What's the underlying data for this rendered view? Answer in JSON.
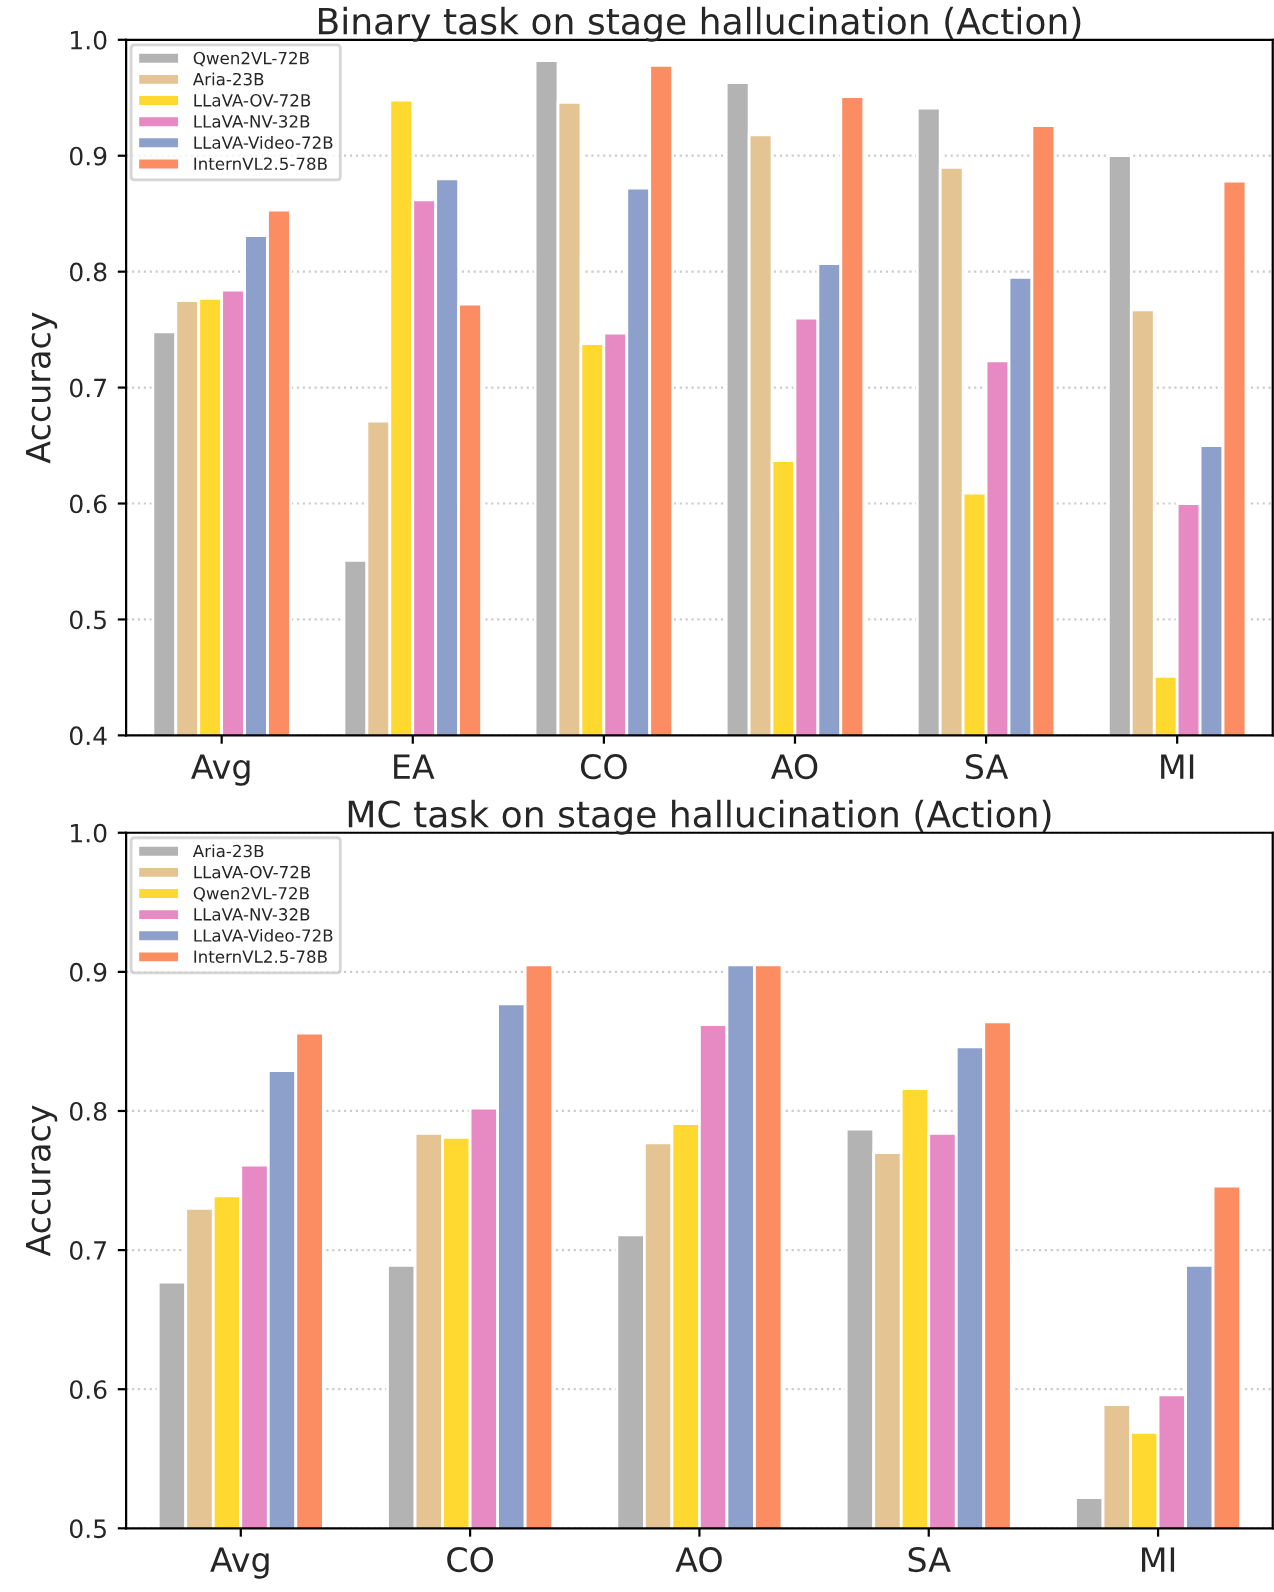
{
  "chart_data": [
    {
      "type": "bar",
      "title": "Binary task on stage hallucination (Action)",
      "ylabel": "Accuracy",
      "categories": [
        "Avg",
        "EA",
        "CO",
        "AO",
        "SA",
        "MI"
      ],
      "series": [
        {
          "name": "Qwen2VL-72B",
          "color": "#b3b3b3",
          "values": [
            0.748,
            0.551,
            0.982,
            0.963,
            0.941,
            0.9
          ]
        },
        {
          "name": "Aria-23B",
          "color": "#e5c494",
          "values": [
            0.775,
            0.671,
            0.946,
            0.918,
            0.89,
            0.767
          ]
        },
        {
          "name": "LLaVA-OV-72B",
          "color": "#ffd92f",
          "values": [
            0.777,
            0.948,
            0.738,
            0.637,
            0.609,
            0.451
          ]
        },
        {
          "name": "LLaVA-NV-32B",
          "color": "#e78ac3",
          "values": [
            0.784,
            0.862,
            0.747,
            0.76,
            0.723,
            0.6
          ]
        },
        {
          "name": "LLaVA-Video-72B",
          "color": "#8da0cb",
          "values": [
            0.831,
            0.88,
            0.872,
            0.807,
            0.795,
            0.65
          ]
        },
        {
          "name": "InternVL2.5-78B",
          "color": "#fc8d62",
          "values": [
            0.853,
            0.772,
            0.978,
            0.951,
            0.926,
            0.878
          ]
        }
      ],
      "ylim": [
        0.4,
        1.0
      ],
      "yticks": [
        {
          "value": 0.4,
          "label": "0.4"
        },
        {
          "value": 0.5,
          "label": "0.5"
        },
        {
          "value": 0.6,
          "label": "0.6"
        },
        {
          "value": 0.7,
          "label": "0.7"
        },
        {
          "value": 0.8,
          "label": "0.8"
        },
        {
          "value": 0.9,
          "label": "0.9"
        },
        {
          "value": 1.0,
          "label": "1.0"
        }
      ],
      "grid": "y",
      "legend": "top left"
    },
    {
      "type": "bar",
      "title": "MC task on stage hallucination (Action)",
      "ylabel": "Accuracy",
      "categories": [
        "Avg",
        "CO",
        "AO",
        "SA",
        "MI"
      ],
      "series": [
        {
          "name": "Aria-23B",
          "color": "#b3b3b3",
          "values": [
            0.677,
            0.689,
            0.711,
            0.787,
            0.522
          ]
        },
        {
          "name": "LLaVA-OV-72B",
          "color": "#e5c494",
          "values": [
            0.73,
            0.784,
            0.777,
            0.77,
            0.589
          ]
        },
        {
          "name": "Qwen2VL-72B",
          "color": "#ffd92f",
          "values": [
            0.739,
            0.781,
            0.791,
            0.816,
            0.569
          ]
        },
        {
          "name": "LLaVA-NV-32B",
          "color": "#e78ac3",
          "values": [
            0.761,
            0.802,
            0.862,
            0.784,
            0.596
          ]
        },
        {
          "name": "LLaVA-Video-72B",
          "color": "#8da0cb",
          "values": [
            0.829,
            0.877,
            0.905,
            0.846,
            0.689
          ]
        },
        {
          "name": "InternVL2.5-78B",
          "color": "#fc8d62",
          "values": [
            0.856,
            0.905,
            0.905,
            0.864,
            0.746
          ]
        }
      ],
      "ylim": [
        0.5,
        1.0
      ],
      "yticks": [
        {
          "value": 0.5,
          "label": "0.5"
        },
        {
          "value": 0.6,
          "label": "0.6"
        },
        {
          "value": 0.7,
          "label": "0.7"
        },
        {
          "value": 0.8,
          "label": "0.8"
        },
        {
          "value": 0.9,
          "label": "0.9"
        },
        {
          "value": 1.0,
          "label": "1.0"
        }
      ],
      "grid": "y",
      "legend": "top left"
    }
  ]
}
